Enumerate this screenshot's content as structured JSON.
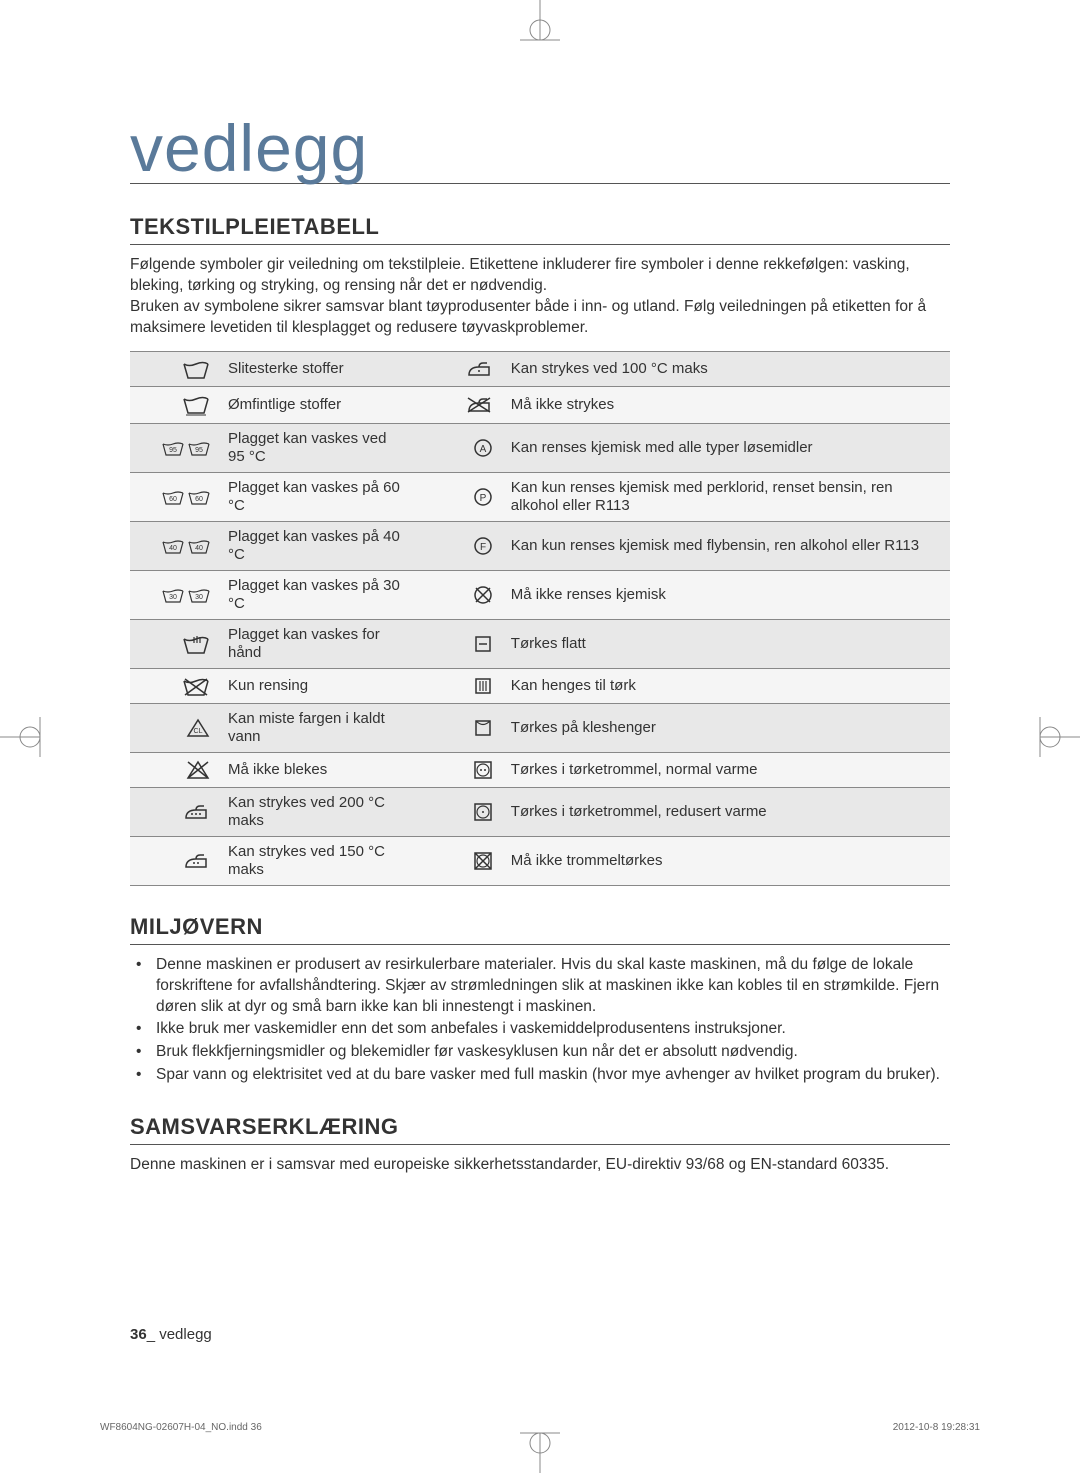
{
  "title": "vedlegg",
  "sections": {
    "s1": {
      "heading": "TEKSTILPLEIETABELL",
      "para1": "Følgende symboler gir veiledning om tekstilpleie. Etikettene inkluderer fire symboler i denne rekkefølgen: vasking, bleking, tørking og stryking, og rensing når det er nødvendig.",
      "para2": "Bruken av symbolene sikrer samsvar blant tøyprodusenter både i inn- og utland. Følg veiledningen på etiketten for å maksimere levetiden til klesplagget og redusere tøyvaskproblemer."
    },
    "s2": {
      "heading": "MILJØVERN",
      "items": [
        "Denne maskinen er produsert av resirkulerbare materialer. Hvis du skal kaste maskinen, må du følge de lokale forskriftene for avfallshåndtering. Skjær av strømledningen slik at maskinen ikke kan kobles til en strømkilde. Fjern døren slik at dyr og små barn ikke kan bli innestengt i maskinen.",
        "Ikke bruk mer vaskemidler enn det som anbefales i vaskemiddelprodusentens instruksjoner.",
        "Bruk flekkfjerningsmidler og blekemidler før vaskesyklusen kun når det er absolutt nødvendig.",
        "Spar vann og elektrisitet ved at du bare vasker med full maskin (hvor mye avhenger av hvilket program du bruker)."
      ]
    },
    "s3": {
      "heading": "SAMSVARSERKLÆRING",
      "para": "Denne maskinen er i samsvar med europeiske sikkerhetsstandarder, EU-direktiv 93/68 og EN-standard 60335."
    }
  },
  "table": {
    "rows": [
      {
        "left": "Slitesterke stoffer",
        "right": "Kan strykes ved 100 °C maks",
        "li": "wash-durable",
        "ri": "iron-1"
      },
      {
        "left": "Ømfintlige stoffer",
        "right": "Må ikke strykes",
        "li": "wash-delicate",
        "ri": "no-iron"
      },
      {
        "left": "Plagget kan vaskes ved 95 °C",
        "right": "Kan renses kjemisk med alle typer løsemidler",
        "li": "wash-95",
        "ri": "circle-a"
      },
      {
        "left": "Plagget kan vaskes på 60 °C",
        "right": "Kan kun renses kjemisk med perklorid, renset bensin, ren alkohol eller R113",
        "li": "wash-60",
        "ri": "circle-p"
      },
      {
        "left": "Plagget kan vaskes på 40 °C",
        "right": "Kan kun renses kjemisk med flybensin, ren alkohol eller R113",
        "li": "wash-40",
        "ri": "circle-f"
      },
      {
        "left": "Plagget kan vaskes på 30 °C",
        "right": "Må ikke renses kjemisk",
        "li": "wash-30",
        "ri": "no-dryclean"
      },
      {
        "left": "Plagget kan vaskes for hånd",
        "right": "Tørkes flatt",
        "li": "hand-wash",
        "ri": "dry-flat"
      },
      {
        "left": "Kun rensing",
        "right": "Kan henges til tørk",
        "li": "no-wash",
        "ri": "dry-hang"
      },
      {
        "left": "Kan miste fargen i kaldt vann",
        "right": "Tørkes på kleshenger",
        "li": "bleach-warn",
        "ri": "dry-hanger"
      },
      {
        "left": "Må ikke blekes",
        "right": "Tørkes i tørketrommel, normal varme",
        "li": "no-bleach",
        "ri": "tumble-normal"
      },
      {
        "left": "Kan strykes ved 200 °C maks",
        "right": "Tørkes i tørketrommel, redusert varme",
        "li": "iron-3",
        "ri": "tumble-low"
      },
      {
        "left": "Kan strykes ved 150 °C maks",
        "right": "Må ikke trommeltørkes",
        "li": "iron-2",
        "ri": "no-tumble"
      }
    ]
  },
  "footer": {
    "page": "36",
    "label": "vedlegg"
  },
  "meta": {
    "file": "WF8604NG-02607H-04_NO.indd   36",
    "timestamp": "2012-10-8   19:28:31"
  },
  "colors": {
    "title": "#5a7a9a",
    "text": "#333333",
    "row_odd": "#e8e8e8",
    "row_even": "#f5f5f5",
    "border": "#888888"
  }
}
